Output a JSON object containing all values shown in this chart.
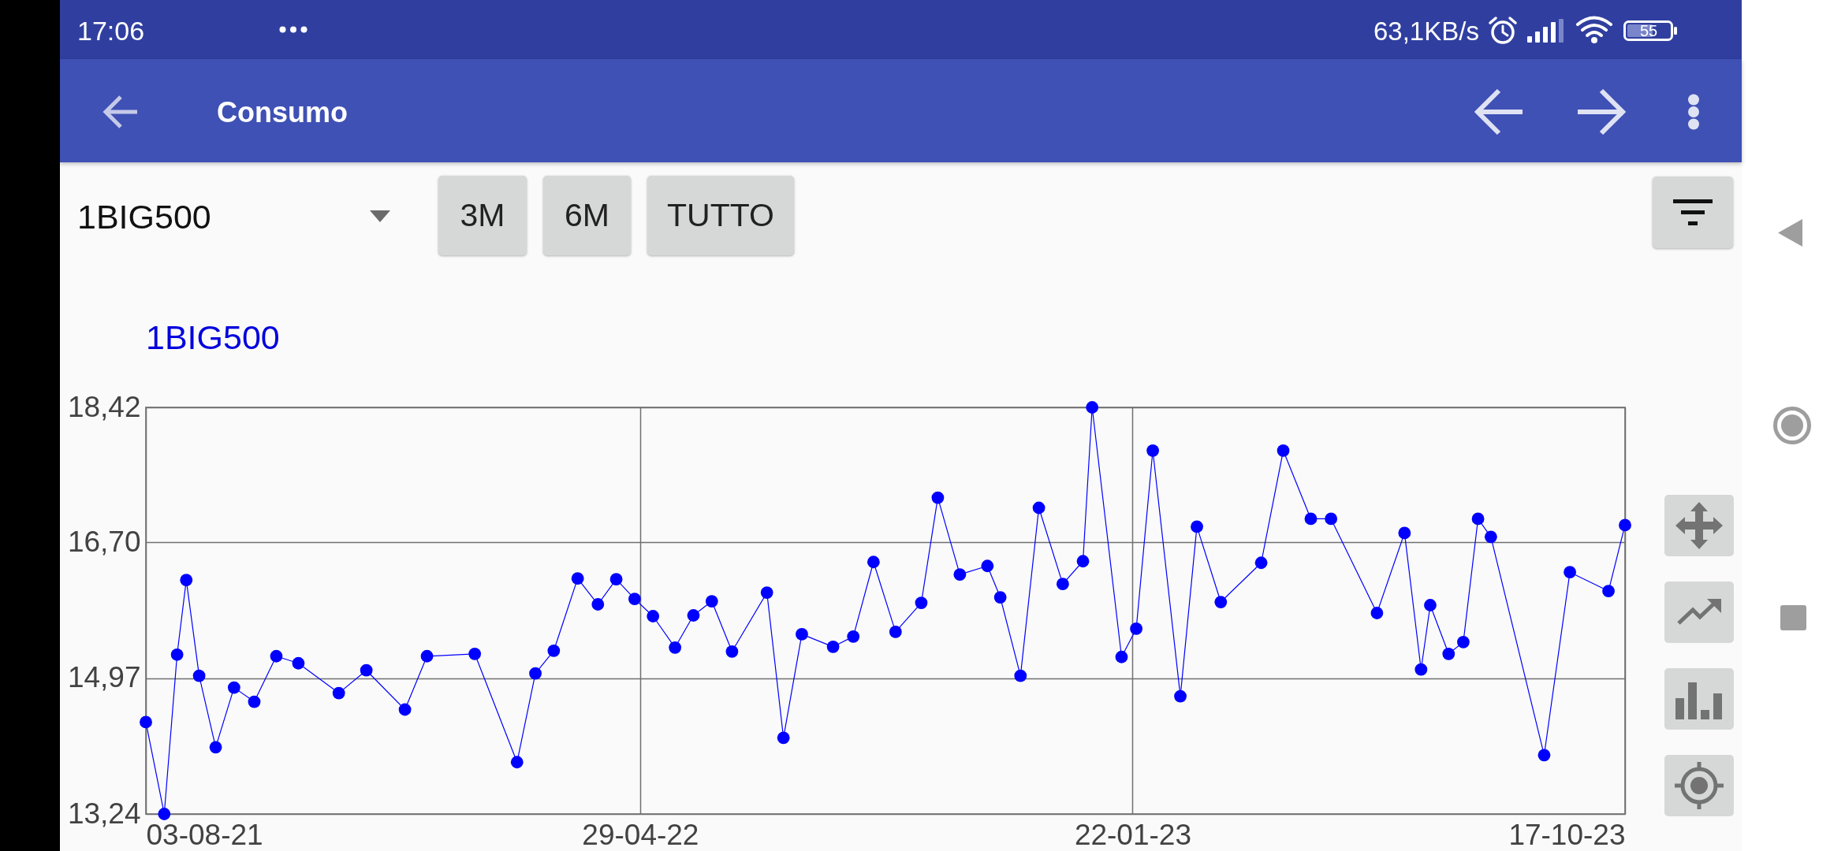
{
  "chart_data": {
    "type": "line",
    "title": "1BIG500",
    "annotations": [
      "17:06",
      "63,1KB/s",
      "55",
      "Consumo",
      "1BIG500",
      "3M",
      "6M",
      "TUTTO"
    ],
    "x": [
      "2021-08-03",
      "2021-08-13",
      "2021-08-20",
      "2021-08-25",
      "2021-09-01",
      "2021-09-10",
      "2021-09-20",
      "2021-10-01",
      "2021-10-13",
      "2021-10-25",
      "2021-11-16",
      "2021-12-01",
      "2021-12-22",
      "2022-01-03",
      "2022-01-29",
      "2022-02-21",
      "2022-03-03",
      "2022-03-13",
      "2022-03-26",
      "2022-04-06",
      "2022-04-16",
      "2022-04-26",
      "2022-05-06",
      "2022-05-18",
      "2022-05-28",
      "2022-06-07",
      "2022-06-18",
      "2022-07-07",
      "2022-07-16",
      "2022-07-26",
      "2022-08-12",
      "2022-08-23",
      "2022-09-03",
      "2022-09-15",
      "2022-09-29",
      "2022-10-08",
      "2022-10-20",
      "2022-11-04",
      "2022-11-11",
      "2022-11-22",
      "2022-12-02",
      "2022-12-15",
      "2022-12-26",
      "2022-12-31",
      "2023-01-16",
      "2023-01-24",
      "2023-02-02",
      "2023-02-17",
      "2023-02-26",
      "2023-03-11",
      "2023-04-02",
      "2023-04-14",
      "2023-04-29",
      "2023-05-10",
      "2023-06-04",
      "2023-06-19",
      "2023-06-28",
      "2023-07-03",
      "2023-07-13",
      "2023-07-21",
      "2023-07-29",
      "2023-08-05",
      "2023-09-03",
      "2023-09-17",
      "2023-10-08",
      "2023-10-17"
    ],
    "values": [
      14.41,
      13.24,
      15.27,
      16.22,
      15.0,
      14.09,
      14.85,
      14.67,
      15.25,
      15.16,
      14.78,
      15.07,
      14.57,
      15.25,
      15.28,
      13.9,
      15.03,
      15.32,
      16.24,
      15.91,
      16.23,
      15.98,
      15.76,
      15.36,
      15.77,
      15.95,
      15.31,
      16.06,
      14.21,
      15.53,
      15.37,
      15.5,
      16.45,
      15.56,
      15.93,
      17.27,
      16.29,
      16.4,
      16.0,
      15.0,
      17.14,
      16.17,
      16.46,
      18.42,
      15.24,
      15.6,
      17.87,
      14.74,
      16.9,
      15.94,
      16.44,
      17.87,
      17.0,
      17.0,
      15.8,
      16.82,
      15.08,
      15.9,
      15.28,
      15.43,
      17.0,
      16.77,
      13.99,
      16.32,
      16.08,
      16.92
    ],
    "color": "#0000ff",
    "xlim": [
      "2021-08-03",
      "2023-10-17"
    ],
    "xticks": [
      {
        "value": "2021-08-03",
        "label": "03-08-21"
      },
      {
        "value": "2022-04-29",
        "label": "29-04-22"
      },
      {
        "value": "2023-01-22",
        "label": "22-01-23"
      },
      {
        "value": "2023-10-17",
        "label": "17-10-23"
      }
    ],
    "ylim": [
      13.24,
      18.42
    ],
    "yticks": [
      {
        "value": 13.24,
        "label": "13,24"
      },
      {
        "value": 14.97,
        "label": "14,97"
      },
      {
        "value": 16.7,
        "label": "16,70"
      },
      {
        "value": 18.42,
        "label": "18,42"
      }
    ],
    "grid": true,
    "marker": "circle",
    "line_style": "solid"
  }
}
